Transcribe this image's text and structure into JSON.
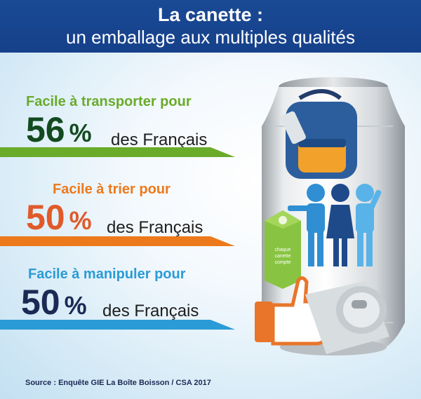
{
  "header": {
    "title": "La canette :",
    "subtitle": "un emballage aux multiples qualités"
  },
  "stats": [
    {
      "heading": "Facile à transporter pour",
      "percent": "56",
      "percent_sign": "%",
      "population": "des Français",
      "value": 56,
      "color": "#6aab2a",
      "number_color": "#134a20"
    },
    {
      "heading": "Facile à trier pour",
      "percent": "50",
      "percent_sign": "%",
      "population": "des Français",
      "value": 50,
      "color": "#ec7a1c",
      "number_color": "#e05a2a"
    },
    {
      "heading": "Facile à manipuler pour",
      "percent": "50",
      "percent_sign": "%",
      "population": "des Français",
      "value": 50,
      "color": "#2a9bd6",
      "number_color": "#1b2a55"
    }
  ],
  "recycling_bin": {
    "line1": "chaque",
    "line2": "canette",
    "line3": "compte"
  },
  "source": "Source : Enquête GIE La Boîte Boisson / CSA 2017",
  "colors": {
    "header_blue": "#1a4a94",
    "green": "#6aab2a",
    "orange": "#ec7a1c",
    "blue": "#2a9bd6"
  },
  "icons": [
    "backpack-icon",
    "people-icon",
    "recycling-bin-icon",
    "thumbs-up-icon",
    "can-icon"
  ]
}
